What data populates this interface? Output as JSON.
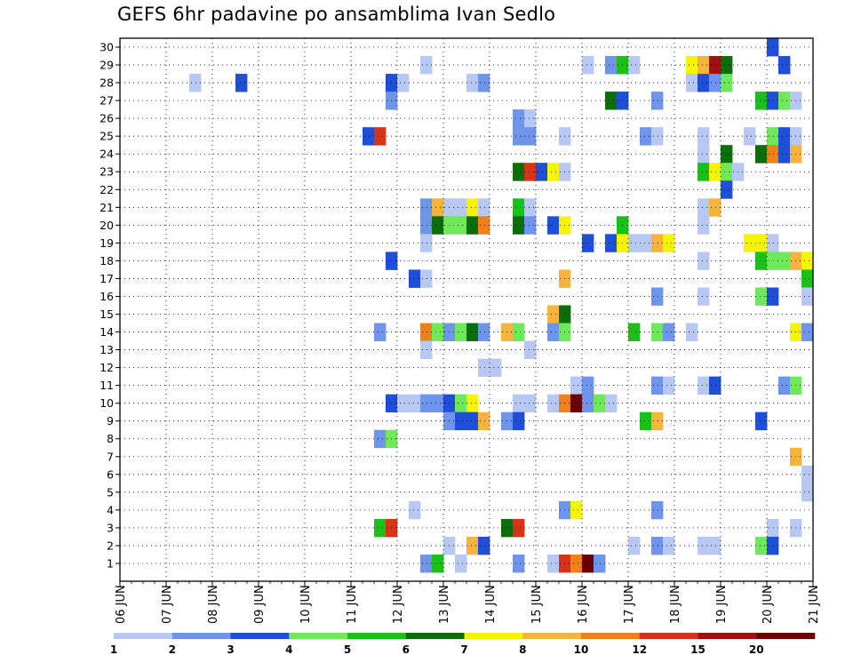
{
  "chart_data": {
    "type": "heatmap",
    "title": "GEFS 6hr padavine po ansamblima Ivan Sedlo",
    "xlabel": "",
    "ylabel": "",
    "x_tick_labels": [
      "06 JUN",
      "07 JUN",
      "08 JUN",
      "09 JUN",
      "10 JUN",
      "11 JUN",
      "12 JUN",
      "13 JUN",
      "14 JUN",
      "15 JUN",
      "16 JUN",
      "17 JUN",
      "18 JUN",
      "19 JUN",
      "20 JUN",
      "21 JUN"
    ],
    "y_tick_labels": [
      "1",
      "2",
      "3",
      "4",
      "5",
      "6",
      "7",
      "8",
      "9",
      "10",
      "11",
      "12",
      "13",
      "14",
      "15",
      "16",
      "17",
      "18",
      "19",
      "20",
      "21",
      "22",
      "23",
      "24",
      "25",
      "26",
      "27",
      "28",
      "29",
      "30"
    ],
    "time_step_hours": 6,
    "grid": true,
    "legend_placement": "bottom",
    "colorbar": {
      "labels": [
        "1",
        "2",
        "3",
        "4",
        "5",
        "6",
        "7",
        "8",
        "10",
        "12",
        "15",
        "20"
      ],
      "colors": [
        "#b7c8f5",
        "#6f94ec",
        "#1f4fd9",
        "#6fe85a",
        "#18c018",
        "#0a6e0a",
        "#f5f500",
        "#f5b43c",
        "#f08018",
        "#d83218",
        "#a01010",
        "#6a0000"
      ]
    },
    "cells_format": "[member, 6h step index from 06 JUN 00Z, color class 1-12]",
    "cells": [
      [
        30,
        56,
        3
      ],
      [
        29,
        26,
        1
      ],
      [
        29,
        40,
        1
      ],
      [
        29,
        42,
        2
      ],
      [
        29,
        43,
        5
      ],
      [
        29,
        44,
        1
      ],
      [
        29,
        49,
        7
      ],
      [
        29,
        50,
        8
      ],
      [
        29,
        51,
        11
      ],
      [
        29,
        52,
        6
      ],
      [
        29,
        57,
        3
      ],
      [
        28,
        6,
        1
      ],
      [
        28,
        10,
        3
      ],
      [
        28,
        23,
        3
      ],
      [
        28,
        24,
        1
      ],
      [
        28,
        30,
        1
      ],
      [
        28,
        31,
        2
      ],
      [
        28,
        49,
        1
      ],
      [
        28,
        50,
        3
      ],
      [
        28,
        51,
        2
      ],
      [
        28,
        52,
        4
      ],
      [
        27,
        23,
        2
      ],
      [
        27,
        42,
        6
      ],
      [
        27,
        43,
        3
      ],
      [
        27,
        46,
        2
      ],
      [
        27,
        55,
        5
      ],
      [
        27,
        56,
        3
      ],
      [
        27,
        57,
        4
      ],
      [
        27,
        58,
        1
      ],
      [
        26,
        34,
        2
      ],
      [
        26,
        35,
        1
      ],
      [
        25,
        21,
        3
      ],
      [
        25,
        22,
        10
      ],
      [
        25,
        34,
        2
      ],
      [
        25,
        35,
        2
      ],
      [
        25,
        38,
        1
      ],
      [
        25,
        45,
        2
      ],
      [
        25,
        46,
        1
      ],
      [
        25,
        50,
        1
      ],
      [
        25,
        54,
        1
      ],
      [
        25,
        56,
        4
      ],
      [
        25,
        57,
        3
      ],
      [
        25,
        58,
        1
      ],
      [
        24,
        50,
        1
      ],
      [
        24,
        52,
        6
      ],
      [
        24,
        55,
        6
      ],
      [
        24,
        56,
        9
      ],
      [
        24,
        57,
        3
      ],
      [
        24,
        58,
        8
      ],
      [
        23,
        34,
        6
      ],
      [
        23,
        35,
        10
      ],
      [
        23,
        36,
        3
      ],
      [
        23,
        37,
        7
      ],
      [
        23,
        38,
        1
      ],
      [
        23,
        50,
        5
      ],
      [
        23,
        51,
        7
      ],
      [
        23,
        52,
        4
      ],
      [
        23,
        53,
        1
      ],
      [
        22,
        52,
        3
      ],
      [
        21,
        26,
        2
      ],
      [
        21,
        27,
        8
      ],
      [
        21,
        28,
        1
      ],
      [
        21,
        29,
        1
      ],
      [
        21,
        30,
        7
      ],
      [
        21,
        31,
        1
      ],
      [
        21,
        34,
        5
      ],
      [
        21,
        35,
        1
      ],
      [
        21,
        50,
        1
      ],
      [
        21,
        51,
        8
      ],
      [
        20,
        26,
        2
      ],
      [
        20,
        27,
        6
      ],
      [
        20,
        28,
        4
      ],
      [
        20,
        29,
        4
      ],
      [
        20,
        30,
        6
      ],
      [
        20,
        31,
        9
      ],
      [
        20,
        34,
        6
      ],
      [
        20,
        35,
        2
      ],
      [
        20,
        37,
        3
      ],
      [
        20,
        38,
        7
      ],
      [
        20,
        43,
        5
      ],
      [
        20,
        50,
        1
      ],
      [
        19,
        26,
        1
      ],
      [
        19,
        40,
        3
      ],
      [
        19,
        42,
        3
      ],
      [
        19,
        43,
        7
      ],
      [
        19,
        44,
        1
      ],
      [
        19,
        45,
        1
      ],
      [
        19,
        46,
        8
      ],
      [
        19,
        47,
        7
      ],
      [
        19,
        54,
        7
      ],
      [
        19,
        55,
        7
      ],
      [
        19,
        56,
        1
      ],
      [
        18,
        23,
        3
      ],
      [
        18,
        50,
        1
      ],
      [
        18,
        55,
        5
      ],
      [
        18,
        56,
        4
      ],
      [
        18,
        57,
        4
      ],
      [
        18,
        58,
        8
      ],
      [
        18,
        59,
        7
      ],
      [
        17,
        25,
        3
      ],
      [
        17,
        26,
        1
      ],
      [
        17,
        38,
        8
      ],
      [
        17,
        59,
        5
      ],
      [
        16,
        46,
        2
      ],
      [
        16,
        50,
        1
      ],
      [
        16,
        55,
        4
      ],
      [
        16,
        56,
        3
      ],
      [
        16,
        59,
        1
      ],
      [
        15,
        37,
        8
      ],
      [
        15,
        38,
        6
      ],
      [
        14,
        22,
        2
      ],
      [
        14,
        26,
        9
      ],
      [
        14,
        27,
        4
      ],
      [
        14,
        28,
        2
      ],
      [
        14,
        29,
        4
      ],
      [
        14,
        30,
        6
      ],
      [
        14,
        31,
        2
      ],
      [
        14,
        33,
        8
      ],
      [
        14,
        34,
        4
      ],
      [
        14,
        37,
        2
      ],
      [
        14,
        38,
        4
      ],
      [
        14,
        44,
        5
      ],
      [
        14,
        46,
        4
      ],
      [
        14,
        47,
        2
      ],
      [
        14,
        49,
        1
      ],
      [
        14,
        58,
        7
      ],
      [
        14,
        59,
        2
      ],
      [
        13,
        26,
        1
      ],
      [
        13,
        35,
        1
      ],
      [
        12,
        31,
        1
      ],
      [
        12,
        32,
        1
      ],
      [
        11,
        39,
        1
      ],
      [
        11,
        40,
        2
      ],
      [
        11,
        46,
        2
      ],
      [
        11,
        47,
        1
      ],
      [
        11,
        50,
        1
      ],
      [
        11,
        51,
        3
      ],
      [
        11,
        57,
        2
      ],
      [
        11,
        58,
        4
      ],
      [
        10,
        23,
        3
      ],
      [
        10,
        24,
        1
      ],
      [
        10,
        25,
        1
      ],
      [
        10,
        26,
        2
      ],
      [
        10,
        27,
        2
      ],
      [
        10,
        28,
        3
      ],
      [
        10,
        29,
        4
      ],
      [
        10,
        30,
        7
      ],
      [
        10,
        34,
        1
      ],
      [
        10,
        35,
        1
      ],
      [
        10,
        37,
        1
      ],
      [
        10,
        38,
        9
      ],
      [
        10,
        39,
        12
      ],
      [
        10,
        40,
        2
      ],
      [
        10,
        41,
        4
      ],
      [
        10,
        42,
        1
      ],
      [
        9,
        28,
        2
      ],
      [
        9,
        29,
        3
      ],
      [
        9,
        30,
        3
      ],
      [
        9,
        31,
        8
      ],
      [
        9,
        33,
        2
      ],
      [
        9,
        34,
        3
      ],
      [
        9,
        45,
        5
      ],
      [
        9,
        46,
        8
      ],
      [
        9,
        55,
        3
      ],
      [
        8,
        22,
        2
      ],
      [
        8,
        23,
        4
      ],
      [
        7,
        58,
        8
      ],
      [
        6,
        59,
        1
      ],
      [
        5,
        59,
        1
      ],
      [
        4,
        25,
        1
      ],
      [
        4,
        38,
        2
      ],
      [
        4,
        39,
        7
      ],
      [
        4,
        46,
        2
      ],
      [
        3,
        22,
        5
      ],
      [
        3,
        23,
        10
      ],
      [
        3,
        33,
        6
      ],
      [
        3,
        34,
        10
      ],
      [
        3,
        56,
        1
      ],
      [
        3,
        58,
        1
      ],
      [
        2,
        28,
        1
      ],
      [
        2,
        30,
        8
      ],
      [
        2,
        31,
        3
      ],
      [
        2,
        44,
        1
      ],
      [
        2,
        46,
        2
      ],
      [
        2,
        47,
        1
      ],
      [
        2,
        50,
        1
      ],
      [
        2,
        51,
        1
      ],
      [
        2,
        55,
        4
      ],
      [
        2,
        56,
        3
      ],
      [
        1,
        26,
        2
      ],
      [
        1,
        27,
        5
      ],
      [
        1,
        29,
        1
      ],
      [
        1,
        34,
        2
      ],
      [
        1,
        37,
        1
      ],
      [
        1,
        38,
        10
      ],
      [
        1,
        39,
        9
      ],
      [
        1,
        40,
        12
      ],
      [
        1,
        41,
        2
      ]
    ]
  }
}
